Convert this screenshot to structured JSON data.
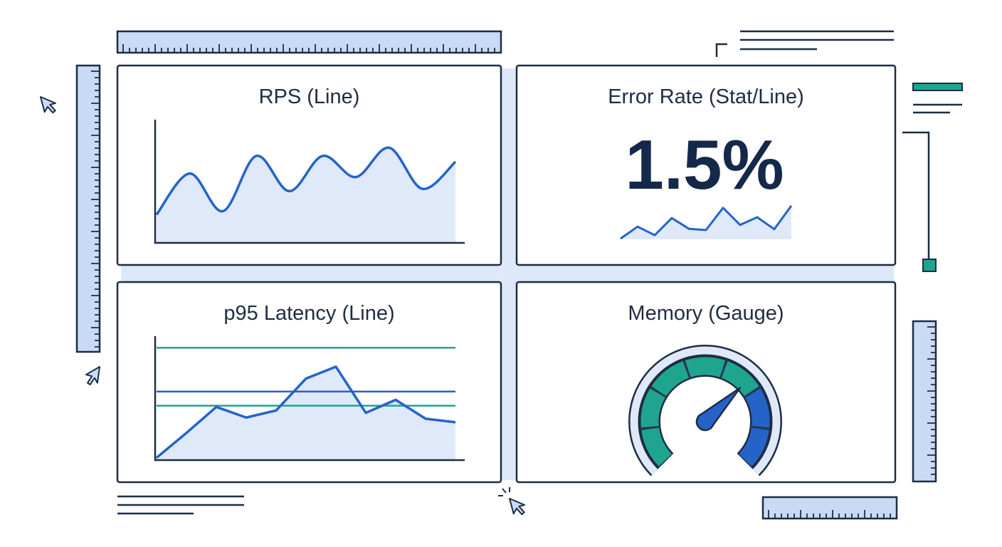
{
  "panels": [
    {
      "type": "line",
      "title": "RPS (Line)",
      "ylim": [
        0,
        100
      ],
      "color": "#2563c9",
      "values": [
        24,
        59,
        27,
        74,
        44,
        74,
        56,
        81,
        46,
        69
      ]
    },
    {
      "type": "stat",
      "title": "Error Rate (Stat/Line)",
      "stat": "1.5%",
      "ylim": [
        0,
        100
      ],
      "color": "#2563c9",
      "values": [
        5,
        33,
        13,
        53,
        28,
        25,
        77,
        37,
        55,
        27,
        82
      ]
    },
    {
      "type": "line",
      "title": "p95 Latency (Line)",
      "ylim": [
        0,
        100
      ],
      "color": "#2563c9",
      "values": [
        2,
        23,
        45,
        36,
        42,
        69,
        79,
        40,
        51,
        35,
        32
      ],
      "thresholds": [
        {
          "value": 95,
          "color": "#1fa58f"
        },
        {
          "value": 58,
          "color": "#2563c9"
        },
        {
          "value": 46,
          "color": "#1fa58f"
        }
      ]
    },
    {
      "type": "gauge",
      "title": "Memory (Gauge)",
      "value": 67,
      "max": 100,
      "color": "#2563c9"
    }
  ]
}
